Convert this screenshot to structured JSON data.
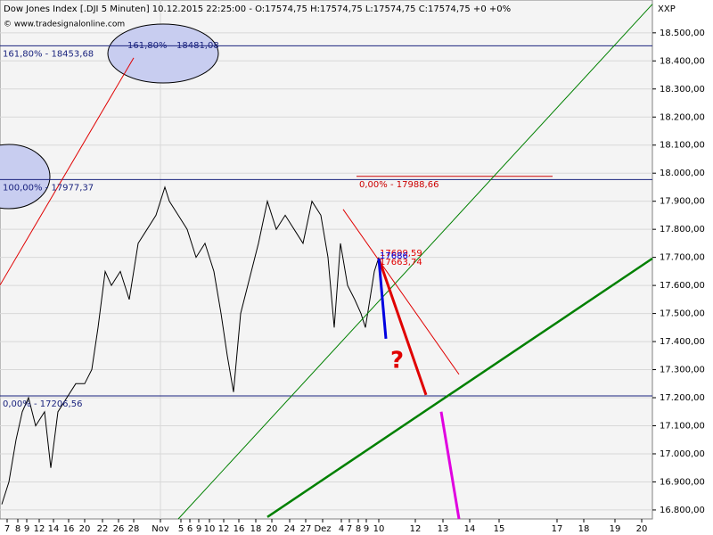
{
  "chart_data": {
    "type": "line",
    "title": "Dow Jones Index [.DJI  5 Minuten]  10.12.2015 22:25:00 - O:17574,75 H:17574,75 L:17574,75 C:17574,75  +0  +0%",
    "subtitle": "© www.tradesignalonline.com",
    "y_axis_label": "XXP",
    "xlim": [
      0,
      732
    ],
    "ylim": [
      16768,
      18617
    ],
    "grid": true,
    "yticks": [
      {
        "value": 16800,
        "label": "16.800,00"
      },
      {
        "value": 16900,
        "label": "16.900,00"
      },
      {
        "value": 17000,
        "label": "17.000,00"
      },
      {
        "value": 17100,
        "label": "17.100,00"
      },
      {
        "value": 17200,
        "label": "17.200,00"
      },
      {
        "value": 17300,
        "label": "17.300,00"
      },
      {
        "value": 17400,
        "label": "17.400,00"
      },
      {
        "value": 17500,
        "label": "17.500,00"
      },
      {
        "value": 17600,
        "label": "17.600,00"
      },
      {
        "value": 17700,
        "label": "17.700,00"
      },
      {
        "value": 17800,
        "label": "17.800,00"
      },
      {
        "value": 17900,
        "label": "17.900,00"
      },
      {
        "value": 18000,
        "label": "18.000,00"
      },
      {
        "value": 18100,
        "label": "18.100,00"
      },
      {
        "value": 18200,
        "label": "18.200,00"
      },
      {
        "value": 18300,
        "label": "18.300,00"
      },
      {
        "value": 18400,
        "label": "18.400,00"
      },
      {
        "value": 18500,
        "label": "18.500,00"
      }
    ],
    "xticks": [
      {
        "value": 8,
        "label": "7"
      },
      {
        "value": 20,
        "label": "8"
      },
      {
        "value": 30,
        "label": "9"
      },
      {
        "value": 44,
        "label": "12"
      },
      {
        "value": 60,
        "label": "14"
      },
      {
        "value": 77,
        "label": "16"
      },
      {
        "value": 95,
        "label": "20"
      },
      {
        "value": 115,
        "label": "22"
      },
      {
        "value": 133,
        "label": "26"
      },
      {
        "value": 150,
        "label": "28"
      },
      {
        "value": 180,
        "label": "Nov"
      },
      {
        "value": 203,
        "label": "5"
      },
      {
        "value": 213,
        "label": "6"
      },
      {
        "value": 223,
        "label": "9"
      },
      {
        "value": 235,
        "label": "10"
      },
      {
        "value": 251,
        "label": "12"
      },
      {
        "value": 268,
        "label": "16"
      },
      {
        "value": 287,
        "label": "18"
      },
      {
        "value": 305,
        "label": "20"
      },
      {
        "value": 325,
        "label": "24"
      },
      {
        "value": 343,
        "label": "27"
      },
      {
        "value": 362,
        "label": "Dez"
      },
      {
        "value": 383,
        "label": "4"
      },
      {
        "value": 392,
        "label": "7"
      },
      {
        "value": 402,
        "label": "8"
      },
      {
        "value": 411,
        "label": "9"
      },
      {
        "value": 425,
        "label": "10"
      },
      {
        "value": 466,
        "label": "12"
      },
      {
        "value": 497,
        "label": "13"
      },
      {
        "value": 527,
        "label": "14"
      },
      {
        "value": 560,
        "label": "15"
      },
      {
        "value": 625,
        "label": "17"
      },
      {
        "value": 655,
        "label": "18"
      },
      {
        "value": 690,
        "label": "19"
      },
      {
        "value": 720,
        "label": "20"
      }
    ],
    "series": [
      {
        "name": "Dow Jones Index",
        "color": "#000000",
        "x": [
          2,
          10,
          18,
          25,
          32,
          40,
          50,
          57,
          65,
          75,
          85,
          95,
          103,
          110,
          118,
          125,
          135,
          145,
          155,
          165,
          175,
          185,
          190,
          200,
          210,
          220,
          230,
          240,
          248,
          255,
          262,
          270,
          278,
          290,
          300,
          310,
          320,
          330,
          340,
          350,
          360,
          368,
          375,
          382,
          390,
          398,
          405,
          410,
          415,
          420,
          425
        ],
        "values": [
          16820,
          16900,
          17050,
          17150,
          17200,
          17100,
          17150,
          16950,
          17150,
          17200,
          17250,
          17250,
          17300,
          17450,
          17650,
          17600,
          17650,
          17550,
          17750,
          17800,
          17850,
          17950,
          17900,
          17850,
          17800,
          17700,
          17750,
          17650,
          17500,
          17350,
          17220,
          17500,
          17600,
          17750,
          17900,
          17800,
          17850,
          17800,
          17750,
          17900,
          17850,
          17700,
          17450,
          17750,
          17600,
          17550,
          17500,
          17450,
          17550,
          17650,
          17700
        ]
      }
    ],
    "levels": [
      {
        "label": "161,80% - 18453,68",
        "value": 18453.68,
        "color": "#1a237e",
        "x": [
          0,
          732
        ]
      },
      {
        "label": "100,00% - 17977,37",
        "value": 17977.37,
        "color": "#1a237e",
        "x": [
          0,
          732
        ]
      },
      {
        "label": "0,00% - 17206,56",
        "value": 17206.56,
        "color": "#1a237e",
        "x": [
          0,
          732
        ]
      },
      {
        "label": "0,00% - 17988,66",
        "value": 17988.66,
        "color": "#cc0000",
        "x": [
          400,
          620
        ]
      }
    ],
    "trendlines": [
      {
        "color": "#008000",
        "width": 1,
        "x": [
          200,
          732
        ],
        "y": [
          16768,
          18602
        ]
      },
      {
        "color": "#008000",
        "width": 2.5,
        "x": [
          300,
          732
        ],
        "y": [
          16775,
          17696
        ]
      },
      {
        "color": "#e00000",
        "width": 1,
        "x": [
          0,
          150
        ],
        "y": [
          17601,
          18411
        ]
      },
      {
        "color": "#e00000",
        "width": 1,
        "x": [
          385,
          515
        ],
        "y": [
          17871,
          17283
        ]
      },
      {
        "color": "#e00000",
        "width": 3,
        "x": [
          425,
          478
        ],
        "y": [
          17696,
          17210
        ]
      },
      {
        "color": "#0000e0",
        "width": 3,
        "x": [
          425,
          433
        ],
        "y": [
          17696,
          17410
        ]
      },
      {
        "color": "#e000e0",
        "width": 3,
        "x": [
          495,
          515
        ],
        "y": [
          17150,
          16768
        ]
      }
    ],
    "annotations": [
      "161,80%",
      "18481,08",
      "17699,59",
      "17663,74",
      "17686",
      "?"
    ]
  }
}
